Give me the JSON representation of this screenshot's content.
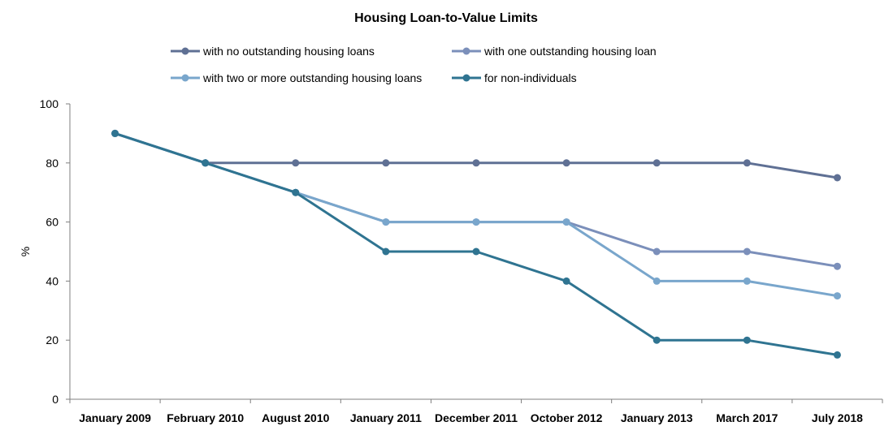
{
  "chart_data": {
    "type": "line",
    "title": "Housing Loan-to-Value Limits",
    "xlabel": "",
    "ylabel": "%",
    "ylim": [
      0,
      100
    ],
    "yticks": [
      0,
      20,
      40,
      60,
      80,
      100
    ],
    "grid": false,
    "legend_position": "top",
    "categories": [
      "January 2009",
      "February 2010",
      "August 2010",
      "January 2011",
      "December 2011",
      "October 2012",
      "January 2013",
      "March 2017",
      "July 2018"
    ],
    "series": [
      {
        "name": "with no outstanding housing loans",
        "color": "#5f7094",
        "values": [
          90,
          80,
          80,
          80,
          80,
          80,
          80,
          80,
          75
        ]
      },
      {
        "name": "with one outstanding housing loan",
        "color": "#7b8fba",
        "values": [
          90,
          80,
          70,
          60,
          60,
          60,
          50,
          50,
          45
        ]
      },
      {
        "name": "with two or more outstanding housing loans",
        "color": "#79a6cc",
        "values": [
          90,
          80,
          70,
          60,
          60,
          60,
          40,
          40,
          35
        ]
      },
      {
        "name": "for non-individuals",
        "color": "#2f7491",
        "values": [
          90,
          80,
          70,
          50,
          50,
          40,
          20,
          20,
          15
        ]
      }
    ]
  }
}
